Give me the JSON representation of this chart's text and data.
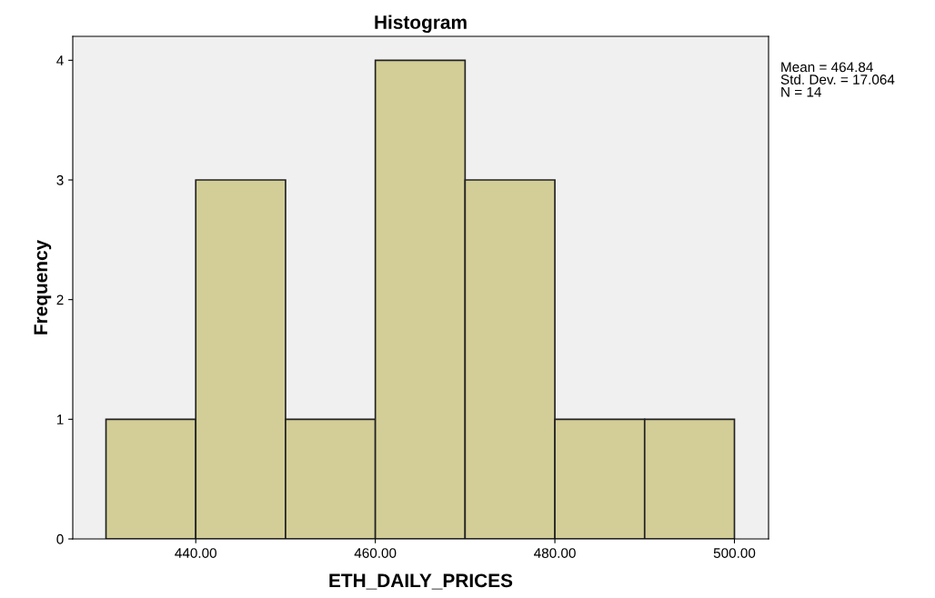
{
  "chart_data": {
    "type": "histogram",
    "title": "Histogram",
    "xlabel": "ETH_DAILY_PRICES",
    "ylabel": "Frequency",
    "bins": [
      430,
      440,
      450,
      460,
      470,
      480,
      490,
      500
    ],
    "values": [
      1,
      3,
      1,
      4,
      3,
      1,
      1
    ],
    "color": "#d3ce97",
    "xlim": [
      426.3,
      503.8
    ],
    "ylim": [
      0,
      4.2
    ],
    "xticks": [
      {
        "value": 440,
        "label": "440.00"
      },
      {
        "value": 460,
        "label": "460.00"
      },
      {
        "value": 480,
        "label": "480.00"
      },
      {
        "value": 500,
        "label": "500.00"
      }
    ],
    "yticks": [
      0,
      1,
      2,
      3,
      4
    ],
    "grid": false,
    "annotations": [
      "Mean = 464.84\nStd. Dev. = 17.064\nN = 14"
    ]
  }
}
